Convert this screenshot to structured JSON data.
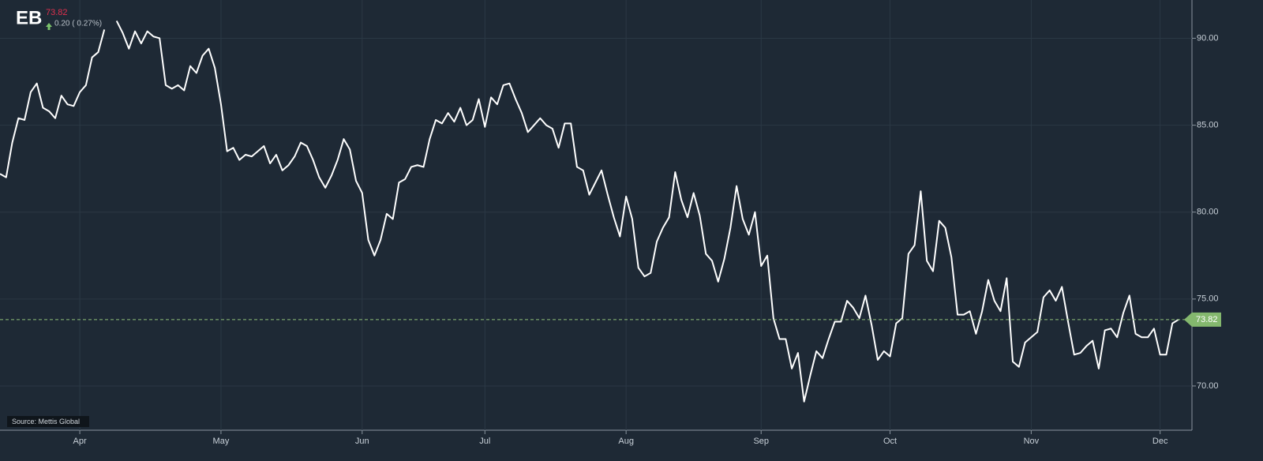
{
  "header": {
    "symbol": "EB",
    "price": "73.82",
    "change": "0.20 ( 0.27%)"
  },
  "source": "Source: Mettis Global",
  "chart_data": {
    "type": "line",
    "color": "#ffffff",
    "grid": true,
    "categories": [
      null,
      null,
      null,
      null,
      null,
      null,
      null,
      null,
      null,
      null,
      null,
      null,
      null,
      "Apr",
      null,
      null,
      null,
      null,
      null,
      null,
      null,
      null,
      null,
      null,
      null,
      null,
      null,
      null,
      null,
      null,
      null,
      null,
      null,
      null,
      null,
      null,
      "May",
      null,
      null,
      null,
      null,
      null,
      null,
      null,
      null,
      null,
      null,
      null,
      null,
      null,
      null,
      null,
      null,
      null,
      null,
      null,
      null,
      null,
      null,
      "Jun",
      null,
      null,
      null,
      null,
      null,
      null,
      null,
      null,
      null,
      null,
      null,
      null,
      null,
      null,
      null,
      null,
      null,
      null,
      null,
      "Jul",
      null,
      null,
      null,
      null,
      null,
      null,
      null,
      null,
      null,
      null,
      null,
      null,
      null,
      null,
      null,
      null,
      null,
      null,
      null,
      null,
      null,
      null,
      "Aug",
      null,
      null,
      null,
      null,
      null,
      null,
      null,
      null,
      null,
      null,
      null,
      null,
      null,
      null,
      null,
      null,
      null,
      null,
      null,
      null,
      null,
      "Sep",
      null,
      null,
      null,
      null,
      null,
      null,
      null,
      null,
      null,
      null,
      null,
      null,
      null,
      null,
      null,
      null,
      null,
      null,
      null,
      null,
      "Oct",
      null,
      null,
      null,
      null,
      null,
      null,
      null,
      null,
      null,
      null,
      null,
      null,
      null,
      null,
      null,
      null,
      null,
      null,
      null,
      null,
      null,
      null,
      "Nov",
      null,
      null,
      null,
      null,
      null,
      null,
      null,
      null,
      null,
      null,
      null,
      null,
      null,
      null,
      null,
      null,
      null,
      null,
      null,
      null,
      "Dec",
      null,
      null,
      null
    ],
    "values": [
      82.2,
      82.0,
      84.0,
      85.4,
      85.3,
      86.9,
      87.4,
      86.0,
      85.8,
      85.4,
      86.7,
      86.2,
      86.1,
      86.9,
      87.3,
      88.9,
      89.2,
      90.5,
      null,
      91.0,
      90.3,
      89.4,
      90.4,
      89.7,
      90.4,
      90.1,
      90.0,
      87.3,
      87.1,
      87.3,
      87.0,
      88.4,
      88.0,
      89.0,
      89.4,
      88.3,
      86.2,
      83.5,
      83.7,
      83.0,
      83.3,
      83.2,
      83.5,
      83.8,
      82.8,
      83.3,
      82.4,
      82.7,
      83.2,
      84.0,
      83.8,
      83.0,
      82.0,
      81.4,
      82.1,
      83.0,
      84.2,
      83.6,
      81.8,
      81.1,
      78.4,
      77.5,
      78.4,
      79.9,
      79.6,
      81.7,
      81.9,
      82.6,
      82.7,
      82.6,
      84.2,
      85.3,
      85.1,
      85.7,
      85.2,
      86.0,
      85.0,
      85.3,
      86.5,
      84.9,
      86.6,
      86.2,
      87.3,
      87.4,
      86.5,
      85.7,
      84.6,
      85.0,
      85.4,
      85.0,
      84.8,
      83.7,
      85.1,
      85.1,
      82.6,
      82.4,
      81.0,
      81.7,
      82.4,
      81.0,
      79.7,
      78.6,
      80.9,
      79.6,
      76.8,
      76.3,
      76.5,
      78.3,
      79.1,
      79.7,
      82.3,
      80.7,
      79.7,
      81.1,
      79.8,
      77.6,
      77.2,
      76.0,
      77.3,
      79.1,
      81.5,
      79.6,
      78.7,
      80.0,
      76.9,
      77.5,
      73.9,
      72.7,
      72.7,
      71.0,
      71.9,
      69.1,
      70.6,
      72.0,
      71.6,
      72.7,
      73.7,
      73.7,
      74.9,
      74.5,
      73.9,
      75.2,
      73.5,
      71.5,
      72.0,
      71.7,
      73.6,
      73.9,
      77.6,
      78.1,
      81.2,
      77.2,
      76.6,
      79.5,
      79.1,
      77.4,
      74.1,
      74.1,
      74.3,
      73.0,
      74.3,
      76.1,
      74.9,
      74.3,
      76.2,
      71.4,
      71.1,
      72.5,
      72.8,
      73.1,
      75.1,
      75.5,
      74.9,
      75.7,
      73.7,
      71.8,
      71.9,
      72.3,
      72.6,
      71.0,
      73.2,
      73.3,
      72.8,
      74.2,
      75.2,
      73.0,
      72.8,
      72.8,
      73.3,
      71.8,
      71.8,
      73.6,
      73.82
    ],
    "ylim": [
      68,
      92.2
    ],
    "yticks": [
      {
        "value": 70,
        "label": "70.00"
      },
      {
        "value": 75,
        "label": "75.00"
      },
      {
        "value": 80,
        "label": "80.00"
      },
      {
        "value": 85,
        "label": "85.00"
      },
      {
        "value": 90,
        "label": "90.00"
      }
    ]
  }
}
